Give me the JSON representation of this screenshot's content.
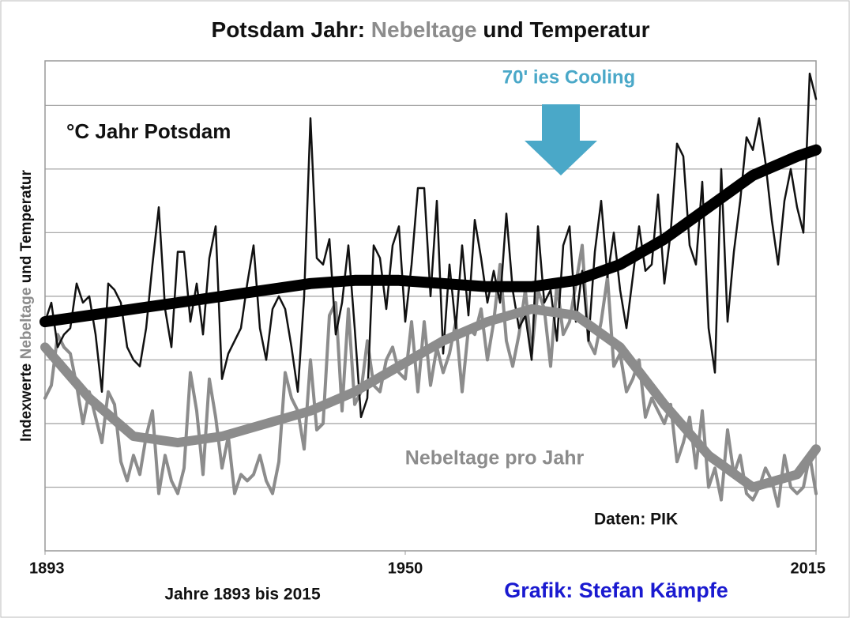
{
  "chart_data": {
    "type": "line",
    "title_parts": [
      {
        "text": "Potsdam Jahr:",
        "color": "#111111"
      },
      {
        "text": "Nebeltage",
        "color": "#8c8c8c"
      },
      {
        "text": "und Temperatur",
        "color": "#111111"
      }
    ],
    "ylabel_parts": [
      {
        "text": "Indexwerte",
        "color": "#111111"
      },
      {
        "text": "Nebeltage",
        "color": "#8c8c8c"
      },
      {
        "text": "und Temperatur",
        "color": "#111111"
      }
    ],
    "annotations": [
      {
        "text": "°C Jahr Potsdam",
        "color": "#111111"
      },
      {
        "text": "70' ies Cooling",
        "color": "#4aa8c8"
      },
      {
        "text": "Nebeltage pro Jahr",
        "color": "#8c8c8c"
      },
      {
        "text": "Daten: PIK",
        "color": "#111111"
      },
      {
        "text": "Jahre 1893 bis 2015",
        "color": "#111111"
      },
      {
        "text": "Grafik: Stefan Kämpfe",
        "color": "#1a1ad0"
      }
    ],
    "xlim": [
      1893,
      2015
    ],
    "xticks": [
      1893,
      1950,
      2015
    ],
    "ylim": [
      0,
      7.7
    ],
    "yticks": [
      1,
      2,
      3,
      4,
      5,
      6,
      7
    ],
    "grid": true,
    "x": [
      1893,
      1894,
      1895,
      1896,
      1897,
      1898,
      1899,
      1900,
      1901,
      1902,
      1903,
      1904,
      1905,
      1906,
      1907,
      1908,
      1909,
      1910,
      1911,
      1912,
      1913,
      1914,
      1915,
      1916,
      1917,
      1918,
      1919,
      1920,
      1921,
      1922,
      1923,
      1924,
      1925,
      1926,
      1927,
      1928,
      1929,
      1930,
      1931,
      1932,
      1933,
      1934,
      1935,
      1936,
      1937,
      1938,
      1939,
      1940,
      1941,
      1942,
      1943,
      1944,
      1945,
      1946,
      1947,
      1948,
      1949,
      1950,
      1951,
      1952,
      1953,
      1954,
      1955,
      1956,
      1957,
      1958,
      1959,
      1960,
      1961,
      1962,
      1963,
      1964,
      1965,
      1966,
      1967,
      1968,
      1969,
      1970,
      1971,
      1972,
      1973,
      1974,
      1975,
      1976,
      1977,
      1978,
      1979,
      1980,
      1981,
      1982,
      1983,
      1984,
      1985,
      1986,
      1987,
      1988,
      1989,
      1990,
      1991,
      1992,
      1993,
      1994,
      1995,
      1996,
      1997,
      1998,
      1999,
      2000,
      2001,
      2002,
      2003,
      2004,
      2005,
      2006,
      2007,
      2008,
      2009,
      2010,
      2011,
      2012,
      2013,
      2014,
      2015
    ],
    "series": [
      {
        "color": "#8c8c8c",
        "width": 4,
        "values": [
          2.4,
          2.6,
          3.4,
          3.2,
          3.1,
          2.6,
          2.0,
          2.5,
          2.1,
          1.7,
          2.5,
          2.3,
          1.4,
          1.1,
          1.5,
          1.2,
          1.8,
          2.2,
          0.9,
          1.5,
          1.1,
          0.9,
          1.3,
          2.8,
          2.2,
          1.2,
          2.7,
          2.1,
          1.3,
          1.8,
          0.9,
          1.2,
          1.1,
          1.2,
          1.5,
          1.1,
          0.9,
          1.4,
          2.8,
          2.4,
          2.2,
          1.6,
          3.0,
          1.9,
          2.0,
          3.7,
          3.9,
          2.2,
          3.8,
          2.3,
          2.5,
          3.3,
          2.6,
          2.5,
          3.0,
          3.2,
          2.8,
          2.7,
          3.6,
          2.5,
          3.6,
          2.6,
          3.2,
          2.8,
          3.1,
          3.6,
          2.5,
          3.5,
          3.4,
          3.8,
          3.0,
          3.6,
          4.5,
          3.3,
          2.9,
          3.4,
          4.1,
          3.1,
          4.1,
          3.8,
          2.9,
          4.2,
          3.4,
          3.6,
          4.2,
          4.8,
          3.3,
          3.1,
          3.6,
          4.3,
          2.9,
          3.1,
          2.5,
          2.7,
          3.0,
          2.1,
          2.4,
          2.2,
          2.0,
          2.3,
          1.4,
          1.7,
          2.1,
          1.3,
          2.2,
          1.0,
          1.3,
          0.8,
          1.9,
          1.2,
          1.5,
          0.9,
          0.8,
          1.0,
          1.3,
          1.1,
          0.7,
          1.5,
          1.0,
          0.9,
          1.0,
          1.5,
          0.9
        ]
      },
      {
        "color": "#111111",
        "width": 2.5,
        "values": [
          3.6,
          3.9,
          3.2,
          3.4,
          3.5,
          4.2,
          3.9,
          4.0,
          3.4,
          2.5,
          4.2,
          4.1,
          3.9,
          3.2,
          3.0,
          2.9,
          3.5,
          4.5,
          5.4,
          3.8,
          3.2,
          4.7,
          4.7,
          3.6,
          4.2,
          3.4,
          4.6,
          5.1,
          2.7,
          3.1,
          3.3,
          3.5,
          4.2,
          4.8,
          3.5,
          3.0,
          3.8,
          4.0,
          3.8,
          3.2,
          2.5,
          4.0,
          6.8,
          4.6,
          4.5,
          4.9,
          3.4,
          3.9,
          4.8,
          3.5,
          2.1,
          2.4,
          4.8,
          4.6,
          3.8,
          4.8,
          5.1,
          3.6,
          4.5,
          5.7,
          5.7,
          4.0,
          5.5,
          3.1,
          4.5,
          3.5,
          4.8,
          3.7,
          5.2,
          4.6,
          3.9,
          4.4,
          3.9,
          5.3,
          4.1,
          3.5,
          3.7,
          3.0,
          5.1,
          3.9,
          4.1,
          3.3,
          4.8,
          5.1,
          3.6,
          4.4,
          3.3,
          4.7,
          5.5,
          4.3,
          5.0,
          4.1,
          3.5,
          4.3,
          5.1,
          4.4,
          4.5,
          5.6,
          4.2,
          5.0,
          6.4,
          6.2,
          4.8,
          4.5,
          5.8,
          3.5,
          2.8,
          6.0,
          3.6,
          4.7,
          5.5,
          6.5,
          6.3,
          6.8,
          6.1,
          5.2,
          4.5,
          5.5,
          6.0,
          5.4,
          5.0,
          7.5,
          7.1
        ]
      },
      {
        "color": "#8c8c8c",
        "width": 12,
        "x": [
          1893,
          1900,
          1907,
          1914,
          1921,
          1928,
          1935,
          1942,
          1949,
          1956,
          1963,
          1970,
          1977,
          1984,
          1991,
          1998,
          2005,
          2012,
          2015
        ],
        "values": [
          3.2,
          2.4,
          1.8,
          1.7,
          1.8,
          2.0,
          2.2,
          2.5,
          2.9,
          3.3,
          3.6,
          3.8,
          3.7,
          3.2,
          2.3,
          1.5,
          1.0,
          1.2,
          1.6
        ]
      },
      {
        "color": "#000000",
        "width": 14,
        "x": [
          1893,
          1900,
          1907,
          1914,
          1921,
          1928,
          1935,
          1942,
          1949,
          1956,
          1963,
          1970,
          1977,
          1984,
          1991,
          1998,
          2005,
          2012,
          2015
        ],
        "values": [
          3.6,
          3.7,
          3.8,
          3.9,
          4.0,
          4.1,
          4.2,
          4.25,
          4.25,
          4.2,
          4.15,
          4.15,
          4.25,
          4.5,
          4.9,
          5.4,
          5.9,
          6.2,
          6.3
        ]
      }
    ]
  }
}
